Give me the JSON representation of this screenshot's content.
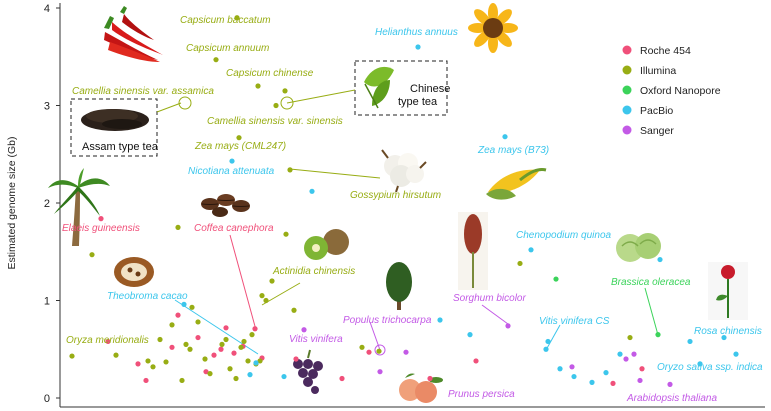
{
  "chart_data": {
    "type": "scatter",
    "ylabel": "Estimated genome size (Gb)",
    "ylim": [
      0,
      4
    ],
    "yticks": [
      "0",
      "1",
      "2",
      "3",
      "4"
    ],
    "legend_position": "top-right",
    "series": [
      {
        "name": "Roche 454",
        "color": "#f0507a",
        "points": [
          {
            "x": 101,
            "y": 1.84
          },
          {
            "x": 108,
            "y": 0.58
          },
          {
            "x": 138,
            "y": 0.35
          },
          {
            "x": 146,
            "y": 0.18
          },
          {
            "x": 172,
            "y": 0.52
          },
          {
            "x": 178,
            "y": 0.85
          },
          {
            "x": 198,
            "y": 0.62
          },
          {
            "x": 206,
            "y": 0.27
          },
          {
            "x": 214,
            "y": 0.44
          },
          {
            "x": 221,
            "y": 0.5
          },
          {
            "x": 226,
            "y": 0.72
          },
          {
            "x": 234,
            "y": 0.46
          },
          {
            "x": 243,
            "y": 0.53
          },
          {
            "x": 255,
            "y": 0.71
          },
          {
            "x": 262,
            "y": 0.41
          },
          {
            "x": 296,
            "y": 0.4
          },
          {
            "x": 342,
            "y": 0.2
          },
          {
            "x": 369,
            "y": 0.47
          },
          {
            "x": 430,
            "y": 0.2
          },
          {
            "x": 476,
            "y": 0.38
          },
          {
            "x": 613,
            "y": 0.15
          },
          {
            "x": 642,
            "y": 0.3
          }
        ]
      },
      {
        "name": "Illumina",
        "color": "#98ad14",
        "points": [
          {
            "x": 72,
            "y": 0.43
          },
          {
            "x": 92,
            "y": 1.47
          },
          {
            "x": 116,
            "y": 0.44
          },
          {
            "x": 148,
            "y": 0.38
          },
          {
            "x": 153,
            "y": 0.32
          },
          {
            "x": 160,
            "y": 0.6
          },
          {
            "x": 166,
            "y": 0.37
          },
          {
            "x": 172,
            "y": 0.75
          },
          {
            "x": 178,
            "y": 1.75
          },
          {
            "x": 182,
            "y": 0.18
          },
          {
            "x": 186,
            "y": 0.55
          },
          {
            "x": 190,
            "y": 0.5
          },
          {
            "x": 192,
            "y": 0.93
          },
          {
            "x": 198,
            "y": 0.78
          },
          {
            "x": 205,
            "y": 0.4
          },
          {
            "x": 210,
            "y": 0.25
          },
          {
            "x": 216,
            "y": 3.47
          },
          {
            "x": 222,
            "y": 0.55
          },
          {
            "x": 226,
            "y": 0.6
          },
          {
            "x": 230,
            "y": 0.3
          },
          {
            "x": 236,
            "y": 0.2
          },
          {
            "x": 237,
            "y": 3.9
          },
          {
            "x": 239,
            "y": 2.67
          },
          {
            "x": 241,
            "y": 0.52
          },
          {
            "x": 244,
            "y": 0.58
          },
          {
            "x": 248,
            "y": 0.38
          },
          {
            "x": 252,
            "y": 0.65
          },
          {
            "x": 256,
            "y": 0.35
          },
          {
            "x": 258,
            "y": 3.2
          },
          {
            "x": 260,
            "y": 0.38
          },
          {
            "x": 262,
            "y": 1.05
          },
          {
            "x": 266,
            "y": 1.0
          },
          {
            "x": 272,
            "y": 1.2
          },
          {
            "x": 276,
            "y": 3.0
          },
          {
            "x": 285,
            "y": 3.15
          },
          {
            "x": 286,
            "y": 1.68
          },
          {
            "x": 290,
            "y": 2.34
          },
          {
            "x": 294,
            "y": 0.9
          },
          {
            "x": 362,
            "y": 0.52
          },
          {
            "x": 379,
            "y": 0.48
          },
          {
            "x": 520,
            "y": 1.38
          },
          {
            "x": 630,
            "y": 0.62
          }
        ]
      },
      {
        "name": "Oxford Nanopore",
        "color": "#3bd35a",
        "points": [
          {
            "x": 556,
            "y": 1.22
          },
          {
            "x": 658,
            "y": 0.65
          }
        ]
      },
      {
        "name": "PacBio",
        "color": "#3cc6ec",
        "points": [
          {
            "x": 184,
            "y": 0.96
          },
          {
            "x": 232,
            "y": 2.43
          },
          {
            "x": 250,
            "y": 0.24
          },
          {
            "x": 256,
            "y": 0.36
          },
          {
            "x": 284,
            "y": 0.22
          },
          {
            "x": 312,
            "y": 2.12
          },
          {
            "x": 418,
            "y": 3.6
          },
          {
            "x": 440,
            "y": 0.8
          },
          {
            "x": 470,
            "y": 0.65
          },
          {
            "x": 505,
            "y": 2.68
          },
          {
            "x": 531,
            "y": 1.52
          },
          {
            "x": 546,
            "y": 0.5
          },
          {
            "x": 548,
            "y": 0.58
          },
          {
            "x": 560,
            "y": 0.3
          },
          {
            "x": 574,
            "y": 0.22
          },
          {
            "x": 592,
            "y": 0.16
          },
          {
            "x": 606,
            "y": 0.26
          },
          {
            "x": 620,
            "y": 0.45
          },
          {
            "x": 660,
            "y": 1.42
          },
          {
            "x": 690,
            "y": 0.58
          },
          {
            "x": 700,
            "y": 0.35
          },
          {
            "x": 724,
            "y": 0.62
          },
          {
            "x": 736,
            "y": 0.45
          }
        ]
      },
      {
        "name": "Sanger",
        "color": "#c35ae6",
        "points": [
          {
            "x": 304,
            "y": 0.7
          },
          {
            "x": 380,
            "y": 0.27
          },
          {
            "x": 406,
            "y": 0.47
          },
          {
            "x": 508,
            "y": 0.74
          },
          {
            "x": 572,
            "y": 0.32
          },
          {
            "x": 626,
            "y": 0.4
          },
          {
            "x": 634,
            "y": 0.45
          },
          {
            "x": 640,
            "y": 0.18
          },
          {
            "x": 670,
            "y": 0.14
          }
        ]
      }
    ],
    "labels": [
      {
        "text": "Capsicum baccatum",
        "color": "#98ad14"
      },
      {
        "text": "Capsicum annuum",
        "color": "#98ad14"
      },
      {
        "text": "Capsicum chinense",
        "color": "#98ad14"
      },
      {
        "text": "Camellia sinensis var. assamica",
        "color": "#98ad14"
      },
      {
        "text": "Camellia sinensis var. sinensis",
        "color": "#98ad14"
      },
      {
        "text": "Zea mays (CML247)",
        "color": "#98ad14"
      },
      {
        "text": "Gossypium hirsutum",
        "color": "#98ad14"
      },
      {
        "text": "Actinidia chinensis",
        "color": "#98ad14"
      },
      {
        "text": "Oryza meridionalis",
        "color": "#98ad14"
      },
      {
        "text": "Helianthus annuus",
        "color": "#3cc6ec"
      },
      {
        "text": "Nicotiana attenuata",
        "color": "#3cc6ec"
      },
      {
        "text": "Zea mays (B73)",
        "color": "#3cc6ec"
      },
      {
        "text": "Chenopodium quinoa",
        "color": "#3cc6ec"
      },
      {
        "text": "Theobroma cacao",
        "color": "#3cc6ec"
      },
      {
        "text": "Vitis vinifera CS",
        "color": "#3cc6ec"
      },
      {
        "text": "Rosa chinensis",
        "color": "#3cc6ec"
      },
      {
        "text": "Oryzo sativa ssp. indica",
        "color": "#3cc6ec"
      },
      {
        "text": "Elaeis guineensis",
        "color": "#f0507a"
      },
      {
        "text": "Coffea canephora",
        "color": "#f0507a"
      },
      {
        "text": "Vitis vinifera",
        "color": "#c35ae6"
      },
      {
        "text": "Populus trichocarpa",
        "color": "#c35ae6"
      },
      {
        "text": "Sorghum bicolor",
        "color": "#c35ae6"
      },
      {
        "text": "Prunus persica",
        "color": "#c35ae6"
      },
      {
        "text": "Arabidopsis thaliana",
        "color": "#c35ae6"
      },
      {
        "text": "Brassica oleracea",
        "color": "#3bd35a"
      }
    ],
    "callouts": [
      "Chinese type tea",
      "Assam type tea"
    ],
    "illustrations": [
      "chili-pepper-icon",
      "sunflower-icon",
      "tea-leaf-icon",
      "black-tea-icon",
      "cotton-icon",
      "corn-icon",
      "palm-tree-icon",
      "coffee-bean-icon",
      "kiwi-icon",
      "cacao-pod-icon",
      "tree-icon",
      "sorghum-icon",
      "cabbage-icon",
      "rose-icon",
      "grape-icon",
      "peach-icon"
    ]
  }
}
